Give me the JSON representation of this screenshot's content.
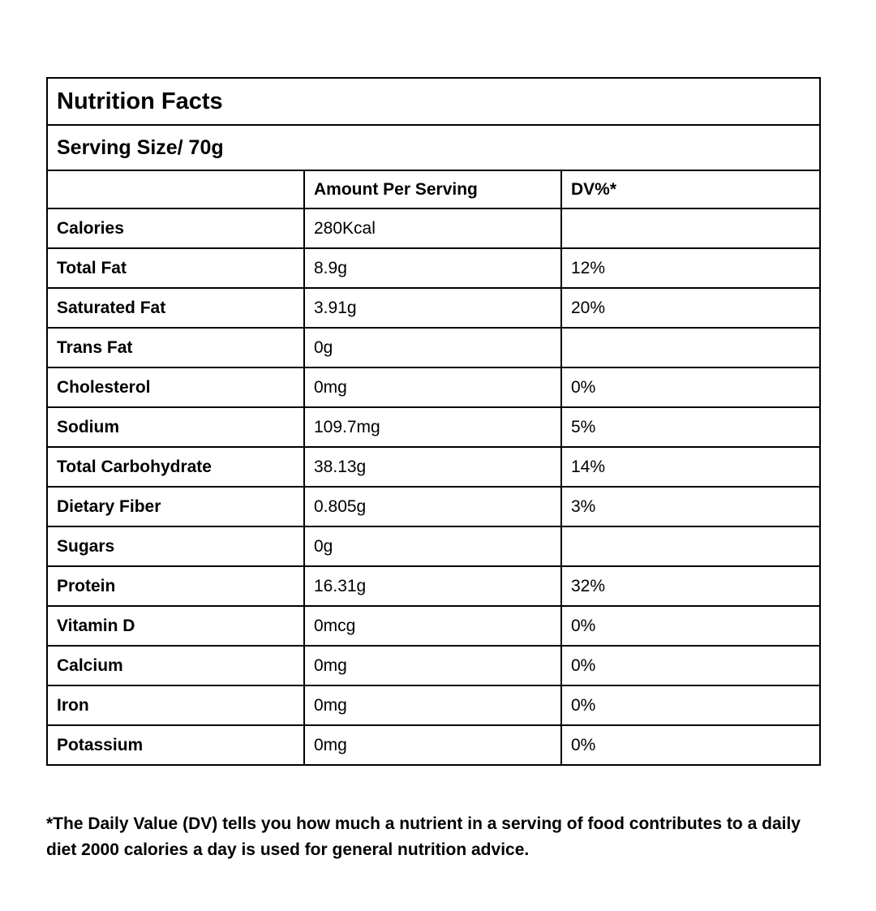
{
  "title": "Nutrition Facts",
  "serving_size": "Serving Size/ 70g",
  "table": {
    "header": [
      null,
      "Amount Per Serving",
      "DV%*"
    ],
    "rows": [
      [
        "Calories",
        "280Kcal",
        null
      ],
      [
        "Total Fat",
        "8.9g",
        "12%"
      ],
      [
        "Saturated Fat",
        "3.91g",
        "20%"
      ],
      [
        "Trans Fat",
        "0g",
        null
      ],
      [
        "Cholesterol",
        "0mg",
        "0%"
      ],
      [
        "Sodium",
        "109.7mg",
        "5%"
      ],
      [
        "Total Carbohydrate",
        "38.13g",
        "14%"
      ],
      [
        "Dietary Fiber",
        "0.805g",
        "3%"
      ],
      [
        "Sugars",
        "0g",
        null
      ],
      [
        "Protein",
        "16.31g",
        "32%"
      ],
      [
        "Vitamin D",
        "0mcg",
        "0%"
      ],
      [
        "Calcium",
        "0mg",
        "0%"
      ],
      [
        "Iron",
        "0mg",
        "0%"
      ],
      [
        "Potassium",
        "0mg",
        "0%"
      ]
    ]
  },
  "footnote": "*The Daily Value (DV) tells you how much a nutrient in a serving of food contributes to a daily diet 2000 calories a day is used for general nutrition advice."
}
